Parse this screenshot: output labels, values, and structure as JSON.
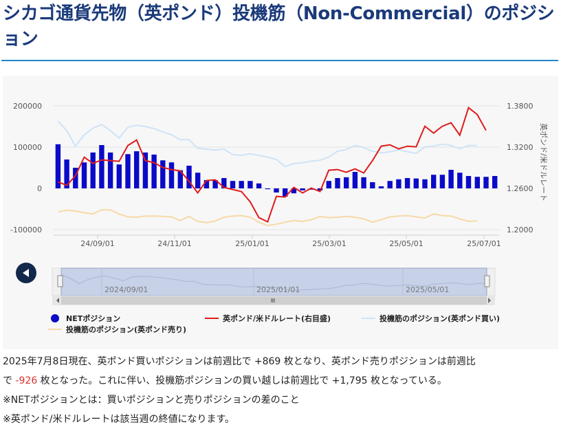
{
  "page": {
    "title": "シカゴ通貨先物（英ポンド）投機筋（Non-Commercial）のポジション",
    "description": {
      "line1": "2025年7月8日現在、英ポンド買いポジションは前週比で +869 枚となり、英ポンド売りポジションは前週比",
      "line2_prefix": "で ",
      "line2_value": "-926",
      "line2_suffix": " 枚となった。これに伴い、投機筋ポジションの買い越しは前週比で +1,795 枚となっている。",
      "note1": "※NETポジションとは：買いポジションと売りポジションの差のこと",
      "note2": "※英ポンド/米ドルレートは該当週の終値になります。"
    }
  },
  "colors": {
    "net_bar": "#0a0ac8",
    "rate_line": "#e01a1a",
    "long_line": "#cfe3f7",
    "short_line": "#f7d9a6",
    "axis_text": "#555555",
    "navigator_fill": "#c7d1e8"
  },
  "chart_data": {
    "type": "bar",
    "x_unit": "week",
    "x_tick_labels": [
      "24/09/01",
      "24/11/01",
      "25/01/01",
      "25/03/01",
      "25/05/01",
      "25/07/01"
    ],
    "left_axis": {
      "ylim": [
        -100000,
        200000
      ],
      "ticks": [
        "200000",
        "100000",
        "0",
        "-100000"
      ]
    },
    "right_axis": {
      "label": "英ポンド/米ドルレート",
      "ylim": [
        1.2,
        1.38
      ],
      "ticks": [
        "1.3800",
        "1.3200",
        "1.2600",
        "1.2000"
      ]
    },
    "grid": "horizontal",
    "legend_placement": "bottom",
    "series": [
      {
        "name": "NETポジション",
        "kind": "bar",
        "axis": "left",
        "values": [
          107000,
          70000,
          50000,
          63000,
          87000,
          105000,
          87000,
          58000,
          83000,
          90000,
          87000,
          82000,
          68000,
          63000,
          44000,
          55000,
          38000,
          20000,
          20000,
          25000,
          18000,
          18000,
          18000,
          12000,
          -2000,
          -10000,
          -20000,
          -12000,
          -5000,
          -3000,
          -5000,
          18000,
          25000,
          27000,
          40000,
          27000,
          15000,
          5000,
          18000,
          22000,
          25000,
          24000,
          22000,
          33000,
          33000,
          45000,
          38000,
          30000,
          28000,
          28000,
          30000
        ]
      },
      {
        "name": "英ポンド/米ドルレート(右目盛)",
        "kind": "line",
        "axis": "right",
        "values": [
          1.2694,
          1.2644,
          1.2784,
          1.3054,
          1.2964,
          1.3014,
          1.3004,
          1.2994,
          1.3224,
          1.3304,
          1.3004,
          1.2974,
          1.2904,
          1.2874,
          1.2854,
          1.2704,
          1.2534,
          1.2714,
          1.2724,
          1.2614,
          1.2584,
          1.2554,
          1.2404,
          1.2174,
          1.2114,
          1.2484,
          1.2474,
          1.2614,
          1.2534,
          1.2604,
          1.2554,
          1.2864,
          1.2874,
          1.2834,
          1.2884,
          1.2824,
          1.3004,
          1.3214,
          1.3234,
          1.3174,
          1.3214,
          1.3204,
          1.3504,
          1.3404,
          1.3504,
          1.3554,
          1.3374,
          1.3774,
          1.3674,
          1.3444
        ]
      },
      {
        "name": "投機筋のポジション(英ポンド買い)",
        "kind": "line",
        "axis": "left",
        "values": [
          163000,
          140000,
          102000,
          130000,
          146000,
          155000,
          140000,
          122000,
          148000,
          153000,
          150000,
          145000,
          137000,
          130000,
          118000,
          118000,
          97000,
          95000,
          93000,
          95000,
          82000,
          80000,
          84000,
          80000,
          76000,
          70000,
          53000,
          60000,
          62000,
          66000,
          68000,
          76000,
          90000,
          94000,
          104000,
          99000,
          90000,
          86000,
          89000,
          93000,
          89000,
          85000,
          100000,
          103000,
          107000,
          104000,
          96000,
          104000,
          104000
        ]
      },
      {
        "name": "投機筋のポジション(英ポンド売り)",
        "kind": "line",
        "axis": "left",
        "values": [
          -57000,
          -53000,
          -55000,
          -59000,
          -62000,
          -52000,
          -52000,
          -62000,
          -69000,
          -70000,
          -67000,
          -67000,
          -68000,
          -69000,
          -78000,
          -68000,
          -80000,
          -83000,
          -79000,
          -70000,
          -67000,
          -66000,
          -70000,
          -82000,
          -90000,
          -87000,
          -82000,
          -78000,
          -80000,
          -76000,
          -68000,
          -71000,
          -70000,
          -68000,
          -70000,
          -74000,
          -82000,
          -76000,
          -69000,
          -67000,
          -66000,
          -69000,
          -72000,
          -62000,
          -66000,
          -67000,
          -74000,
          -80000,
          -79000
        ]
      }
    ],
    "navigator": {
      "tick_labels": [
        "2024/09/01",
        "2025/01/01",
        "2025/05/01"
      ]
    }
  }
}
